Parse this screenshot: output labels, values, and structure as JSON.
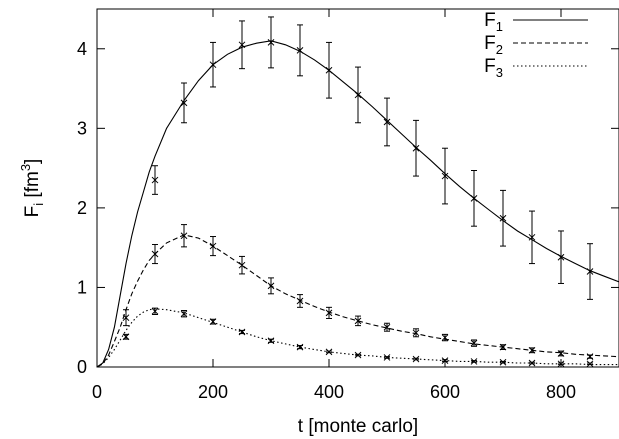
{
  "chart_data": {
    "type": "line",
    "xlabel": "t [monte carlo]",
    "ylabel": {
      "main": "F",
      "sub": "i",
      "unit_open": " [fm",
      "unit_sup": "3",
      "unit_close": "]"
    },
    "xlim": [
      0,
      900
    ],
    "ylim": [
      0,
      4.5
    ],
    "xticks": [
      0,
      200,
      400,
      600,
      800
    ],
    "yticks": [
      0,
      1,
      2,
      3,
      4
    ],
    "grid": false,
    "legend_position": "top-right",
    "series": [
      {
        "name": "F",
        "sub": "1",
        "dash": "solid",
        "curve": {
          "x": [
            0,
            10,
            20,
            30,
            40,
            50,
            60,
            70,
            80,
            90,
            100,
            120,
            150,
            175,
            200,
            225,
            250,
            275,
            300,
            325,
            350,
            375,
            400,
            425,
            450,
            475,
            500,
            525,
            550,
            575,
            600,
            625,
            650,
            675,
            700,
            725,
            750,
            775,
            800,
            825,
            850,
            875,
            900
          ],
          "y": [
            0,
            0.05,
            0.22,
            0.5,
            0.9,
            1.3,
            1.65,
            1.95,
            2.2,
            2.45,
            2.65,
            3.0,
            3.35,
            3.6,
            3.8,
            3.93,
            4.02,
            4.07,
            4.1,
            4.05,
            3.97,
            3.86,
            3.73,
            3.58,
            3.43,
            3.27,
            3.1,
            2.93,
            2.76,
            2.6,
            2.43,
            2.27,
            2.12,
            1.98,
            1.84,
            1.71,
            1.6,
            1.49,
            1.39,
            1.3,
            1.21,
            1.14,
            1.07
          ]
        },
        "points": {
          "x": [
            100,
            150,
            200,
            250,
            300,
            350,
            400,
            450,
            500,
            550,
            600,
            650,
            700,
            750,
            800,
            850
          ],
          "y": [
            2.35,
            3.32,
            3.8,
            4.05,
            4.08,
            3.98,
            3.73,
            3.42,
            3.08,
            2.75,
            2.4,
            2.12,
            1.87,
            1.63,
            1.38,
            1.2
          ],
          "err": [
            0.18,
            0.25,
            0.28,
            0.3,
            0.32,
            0.32,
            0.35,
            0.35,
            0.3,
            0.35,
            0.35,
            0.35,
            0.35,
            0.33,
            0.33,
            0.35
          ]
        }
      },
      {
        "name": "F",
        "sub": "2",
        "dash": "dashed",
        "curve": {
          "x": [
            0,
            10,
            20,
            30,
            40,
            50,
            60,
            70,
            80,
            90,
            100,
            120,
            150,
            175,
            200,
            225,
            250,
            275,
            300,
            325,
            350,
            375,
            400,
            425,
            450,
            475,
            500,
            525,
            550,
            575,
            600,
            625,
            650,
            675,
            700,
            725,
            750,
            775,
            800,
            825,
            850,
            875,
            900
          ],
          "y": [
            0,
            0.04,
            0.15,
            0.32,
            0.5,
            0.72,
            0.92,
            1.08,
            1.22,
            1.34,
            1.42,
            1.56,
            1.66,
            1.62,
            1.52,
            1.4,
            1.28,
            1.15,
            1.02,
            0.92,
            0.84,
            0.76,
            0.69,
            0.63,
            0.58,
            0.53,
            0.49,
            0.45,
            0.42,
            0.38,
            0.35,
            0.32,
            0.29,
            0.27,
            0.25,
            0.23,
            0.21,
            0.19,
            0.18,
            0.16,
            0.15,
            0.14,
            0.13
          ]
        },
        "points": {
          "x": [
            50,
            100,
            150,
            200,
            250,
            300,
            350,
            400,
            450,
            500,
            550,
            600,
            650,
            700,
            750,
            800,
            850
          ],
          "y": [
            0.62,
            1.42,
            1.65,
            1.52,
            1.28,
            1.02,
            0.83,
            0.68,
            0.58,
            0.5,
            0.43,
            0.37,
            0.3,
            0.25,
            0.21,
            0.17,
            0.13
          ],
          "err": [
            0.1,
            0.12,
            0.14,
            0.12,
            0.11,
            0.1,
            0.08,
            0.07,
            0.06,
            0.05,
            0.05,
            0.04,
            0.04,
            0.03,
            0.03,
            0.03,
            0.02
          ]
        }
      },
      {
        "name": "F",
        "sub": "3",
        "dash": "dotted",
        "curve": {
          "x": [
            0,
            10,
            20,
            30,
            40,
            50,
            60,
            70,
            80,
            90,
            100,
            120,
            150,
            175,
            200,
            225,
            250,
            275,
            300,
            325,
            350,
            375,
            400,
            425,
            450,
            475,
            500,
            525,
            550,
            575,
            600,
            625,
            650,
            675,
            700,
            725,
            750,
            775,
            800,
            825,
            850,
            875,
            900
          ],
          "y": [
            0,
            0.04,
            0.12,
            0.22,
            0.34,
            0.46,
            0.56,
            0.64,
            0.69,
            0.72,
            0.73,
            0.72,
            0.68,
            0.62,
            0.56,
            0.5,
            0.44,
            0.38,
            0.33,
            0.29,
            0.25,
            0.22,
            0.19,
            0.17,
            0.15,
            0.14,
            0.12,
            0.11,
            0.1,
            0.09,
            0.08,
            0.07,
            0.07,
            0.06,
            0.06,
            0.05,
            0.05,
            0.04,
            0.04,
            0.04,
            0.03,
            0.03,
            0.03
          ]
        },
        "points": {
          "x": [
            50,
            100,
            150,
            200,
            250,
            300,
            350,
            400,
            450,
            500,
            550,
            600,
            650,
            700,
            750,
            800,
            850
          ],
          "y": [
            0.38,
            0.7,
            0.67,
            0.57,
            0.44,
            0.33,
            0.25,
            0.19,
            0.15,
            0.12,
            0.1,
            0.08,
            0.07,
            0.06,
            0.05,
            0.04,
            0.04
          ],
          "err": [
            0.03,
            0.04,
            0.04,
            0.03,
            0.02,
            0.02,
            0.02,
            0.01,
            0.01,
            0.01,
            0.01,
            0.01,
            0.01,
            0.01,
            0.01,
            0.01,
            0.01
          ]
        }
      }
    ]
  }
}
